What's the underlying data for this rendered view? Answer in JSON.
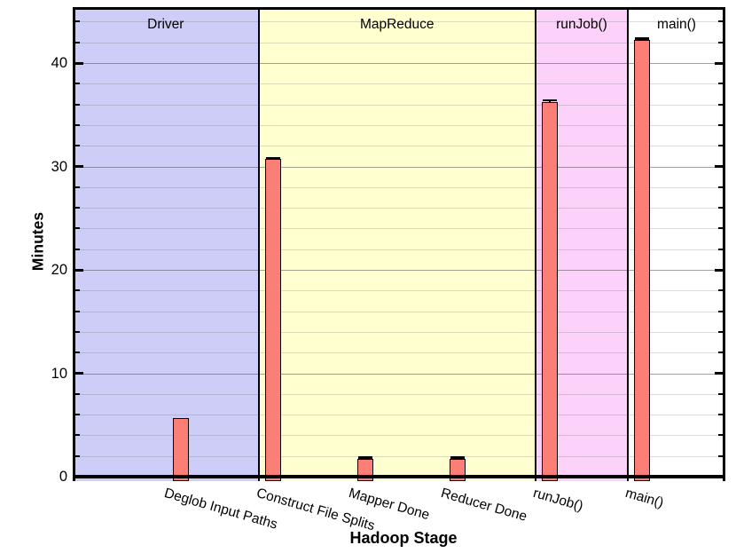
{
  "chart_data": {
    "type": "bar",
    "title": "",
    "xlabel": "Hadoop Stage",
    "ylabel": "Minutes",
    "ylim": [
      0,
      45.4
    ],
    "y_major_ticks": [
      0,
      10,
      20,
      30,
      40
    ],
    "y_tick_labels": [
      "0",
      "10",
      "20",
      "30",
      "40"
    ],
    "y_minor_tick_step": 2,
    "grid": true,
    "legend": "none",
    "bar_color": "#fb7f77",
    "bar_edge_color": "#000000",
    "categories": [
      "Deglob Input Paths",
      "Construct File Splits",
      "Mapper Done",
      "Reducer Done",
      "runJob()",
      "main()"
    ],
    "values": [
      5.7,
      30.7,
      1.7,
      1.7,
      36.2,
      42.2
    ],
    "errors": [
      0,
      0.2,
      0.25,
      0.25,
      0.3,
      0.25
    ],
    "background_regions": [
      {
        "label": "Driver",
        "color": "#cdcdf8",
        "first_category": 0,
        "last_category": 0
      },
      {
        "label": "MapReduce",
        "color": "#ffffd0",
        "first_category": 1,
        "last_category": 3
      },
      {
        "label": "runJob()",
        "color": "#fcd2fa",
        "first_category": 4,
        "last_category": 4
      },
      {
        "label": "main()",
        "color": "#ffffff",
        "first_category": 5,
        "last_category": 5
      }
    ]
  }
}
